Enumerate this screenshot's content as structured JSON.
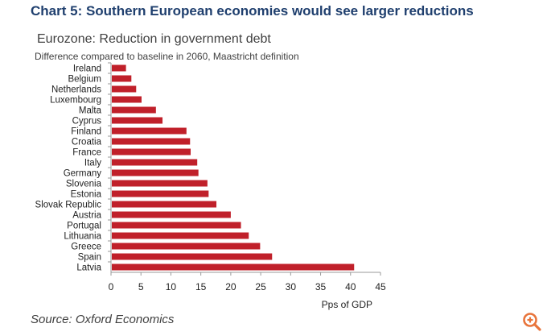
{
  "page": {
    "heading": "Chart 5: Southern European economies would see larger reductions",
    "source": "Source: Oxford Economics"
  },
  "colors": {
    "heading": "#1f3f6e",
    "bar": "#c0202a",
    "axis": "#999999",
    "zoom_icon": "#e8743b"
  },
  "zoom_button": {
    "icon": "zoom-in-icon"
  },
  "chart_data": {
    "type": "bar",
    "orientation": "horizontal",
    "title": "Eurozone: Reduction in government debt",
    "subtitle": "Difference compared to baseline in 2060, Maastricht definition",
    "xlabel": "Pps of GDP",
    "ylabel": "",
    "xlim": [
      0,
      45
    ],
    "xticks": [
      0,
      5,
      10,
      15,
      20,
      25,
      30,
      35,
      40,
      45
    ],
    "grid": false,
    "legend": "none",
    "categories": [
      "Ireland",
      "Belgium",
      "Netherlands",
      "Luxembourg",
      "Malta",
      "Cyprus",
      "Finland",
      "Croatia",
      "France",
      "Italy",
      "Germany",
      "Slovenia",
      "Estonia",
      "Slovak Republic",
      "Austria",
      "Portugal",
      "Lithuania",
      "Greece",
      "Spain",
      "Latvia"
    ],
    "values": [
      2.5,
      3.4,
      4.2,
      5.1,
      7.5,
      8.6,
      12.6,
      13.2,
      13.3,
      14.4,
      14.6,
      16.1,
      16.3,
      17.6,
      20.0,
      21.7,
      23.0,
      24.9,
      26.9,
      40.6
    ]
  }
}
